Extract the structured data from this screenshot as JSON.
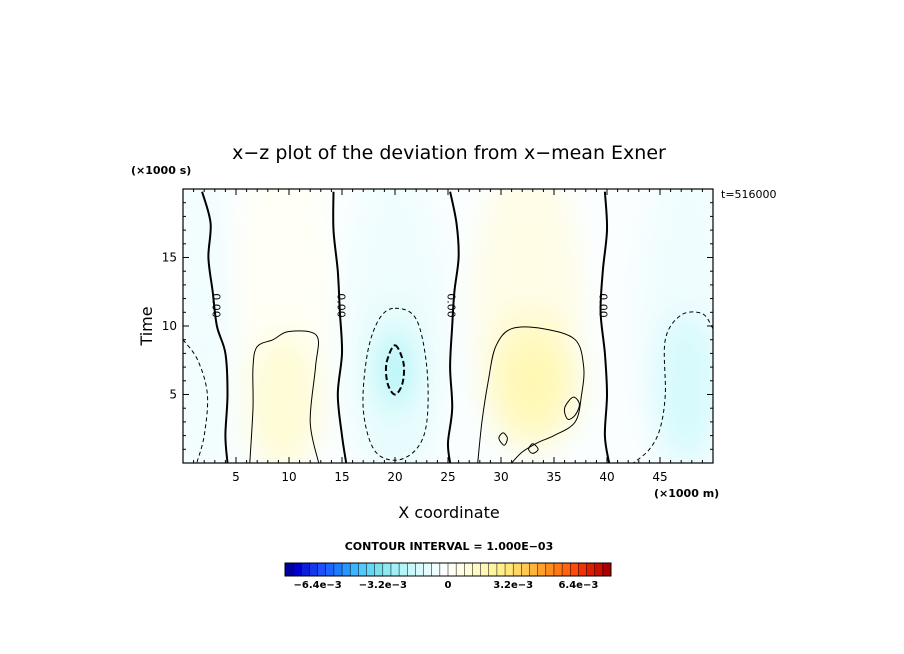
{
  "chart_data": {
    "type": "heatmap",
    "title": "x−z plot of the deviation from x−mean Exner",
    "xlabel": "X coordinate",
    "ylabel": "Time",
    "x_unit_label": "(×1000 m)",
    "y_unit_label": "(×1000 s)",
    "time_label": "t=516000",
    "contour_interval_label": "CONTOUR INTERVAL = 1.000E−03",
    "contour_interval": 0.001,
    "xlim": [
      0,
      50
    ],
    "ylim": [
      0,
      20
    ],
    "x_ticks": [
      5,
      10,
      15,
      20,
      25,
      30,
      35,
      40,
      45
    ],
    "y_ticks": [
      5,
      10,
      15
    ],
    "zero_contour_label": "0.00",
    "zero_contours": [
      {
        "label_x": 3.1,
        "label_y": 11.5,
        "points": [
          [
            1.8,
            19.8
          ],
          [
            2.6,
            17.5
          ],
          [
            2.4,
            15.0
          ],
          [
            2.8,
            12.5
          ],
          [
            3.2,
            10.0
          ],
          [
            4.0,
            8.0
          ],
          [
            4.2,
            5.0
          ],
          [
            4.0,
            2.0
          ],
          [
            4.2,
            0.0
          ]
        ]
      },
      {
        "label_x": 14.9,
        "label_y": 11.5,
        "points": [
          [
            14.2,
            19.8
          ],
          [
            14.2,
            17.0
          ],
          [
            14.6,
            14.0
          ],
          [
            14.8,
            11.0
          ],
          [
            15.0,
            8.0
          ],
          [
            14.6,
            5.0
          ],
          [
            15.0,
            2.0
          ],
          [
            15.4,
            0.0
          ]
        ]
      },
      {
        "label_x": 25.3,
        "label_y": 11.5,
        "points": [
          [
            25.2,
            19.8
          ],
          [
            25.8,
            17.5
          ],
          [
            26.0,
            15.0
          ],
          [
            25.6,
            12.5
          ],
          [
            25.4,
            10.0
          ],
          [
            25.2,
            7.0
          ],
          [
            25.4,
            4.0
          ],
          [
            25.0,
            1.5
          ],
          [
            25.2,
            0.0
          ]
        ]
      },
      {
        "label_x": 39.6,
        "label_y": 11.5,
        "points": [
          [
            39.8,
            19.8
          ],
          [
            40.0,
            17.0
          ],
          [
            39.6,
            14.0
          ],
          [
            39.4,
            11.0
          ],
          [
            39.8,
            8.0
          ],
          [
            40.0,
            5.0
          ],
          [
            39.8,
            2.0
          ],
          [
            40.2,
            0.0
          ]
        ]
      }
    ],
    "negative_contours": [
      {
        "value": -0.001,
        "closed": false,
        "points": [
          [
            0.0,
            9.0
          ],
          [
            1.4,
            7.5
          ],
          [
            2.3,
            5.0
          ],
          [
            2.0,
            2.0
          ],
          [
            1.3,
            0.0
          ]
        ]
      },
      {
        "value": -0.001,
        "closed": true,
        "points": [
          [
            20.0,
            11.3
          ],
          [
            22.0,
            10.5
          ],
          [
            23.0,
            7.0
          ],
          [
            23.0,
            3.0
          ],
          [
            22.0,
            1.0
          ],
          [
            20.0,
            0.2
          ],
          [
            18.0,
            1.0
          ],
          [
            17.0,
            4.0
          ],
          [
            17.4,
            8.0
          ],
          [
            18.5,
            10.5
          ]
        ]
      },
      {
        "value": -0.002,
        "closed": true,
        "points": [
          [
            20.0,
            8.6
          ],
          [
            20.8,
            7.3
          ],
          [
            20.7,
            5.8
          ],
          [
            20.0,
            5.0
          ],
          [
            19.3,
            5.8
          ],
          [
            19.2,
            7.3
          ]
        ]
      },
      {
        "value": -0.001,
        "closed": false,
        "points": [
          [
            50.0,
            9.8
          ],
          [
            49.0,
            10.9
          ],
          [
            47.0,
            10.8
          ],
          [
            45.5,
            9.0
          ],
          [
            45.5,
            5.0
          ],
          [
            45.0,
            2.5
          ],
          [
            44.0,
            1.0
          ],
          [
            42.5,
            0.0
          ]
        ]
      }
    ],
    "positive_contours": [
      {
        "value": 0.001,
        "closed": false,
        "points": [
          [
            6.3,
            0.0
          ],
          [
            6.6,
            4.0
          ],
          [
            6.6,
            7.0
          ],
          [
            7.0,
            8.5
          ],
          [
            8.5,
            9.0
          ],
          [
            10.0,
            9.6
          ],
          [
            12.6,
            9.3
          ],
          [
            12.5,
            7.0
          ],
          [
            12.0,
            3.0
          ],
          [
            12.8,
            0.0
          ]
        ]
      },
      {
        "value": 0.001,
        "closed": false,
        "points": [
          [
            27.8,
            0.0
          ],
          [
            28.2,
            3.0
          ],
          [
            28.8,
            6.0
          ],
          [
            29.5,
            8.5
          ],
          [
            31.0,
            9.8
          ],
          [
            34.0,
            9.8
          ],
          [
            37.0,
            9.0
          ],
          [
            37.8,
            7.0
          ],
          [
            37.6,
            5.0
          ],
          [
            37.0,
            3.0
          ],
          [
            35.0,
            2.0
          ],
          [
            33.5,
            1.5
          ],
          [
            32.0,
            0.8
          ],
          [
            31.0,
            0.0
          ]
        ]
      },
      {
        "value": 0.001,
        "closed": true,
        "points": [
          [
            36.8,
            4.8
          ],
          [
            37.4,
            4.3
          ],
          [
            37.0,
            3.5
          ],
          [
            36.3,
            3.2
          ],
          [
            36.0,
            4.0
          ]
        ]
      },
      {
        "value": 0.001,
        "closed": true,
        "points": [
          [
            30.2,
            2.2
          ],
          [
            30.6,
            1.8
          ],
          [
            30.3,
            1.3
          ],
          [
            29.8,
            1.8
          ]
        ]
      },
      {
        "value": 0.001,
        "closed": true,
        "points": [
          [
            33.0,
            1.4
          ],
          [
            33.5,
            1.0
          ],
          [
            33.0,
            0.7
          ],
          [
            32.6,
            1.0
          ]
        ]
      }
    ],
    "fill_blobs": [
      {
        "x": 2.0,
        "y": 10.0,
        "rx": 2.3,
        "ry": 12.0,
        "value": -0.0005
      },
      {
        "x": 47.5,
        "y": 10.0,
        "rx": 4.5,
        "ry": 12.0,
        "value": -0.0008
      },
      {
        "x": 47.5,
        "y": 5.5,
        "rx": 3.0,
        "ry": 5.5,
        "value": -0.0014
      },
      {
        "x": 9.5,
        "y": 12.0,
        "rx": 4.5,
        "ry": 11.0,
        "value": 0.0004
      },
      {
        "x": 9.5,
        "y": 4.5,
        "rx": 3.5,
        "ry": 5.0,
        "value": 0.001
      },
      {
        "x": 20.0,
        "y": 9.5,
        "rx": 5.0,
        "ry": 12.0,
        "value": -0.0005
      },
      {
        "x": 20.0,
        "y": 6.0,
        "rx": 3.5,
        "ry": 6.5,
        "value": -0.0012
      },
      {
        "x": 20.0,
        "y": 6.8,
        "rx": 1.6,
        "ry": 2.8,
        "value": -0.0022
      },
      {
        "x": 32.5,
        "y": 12.0,
        "rx": 5.0,
        "ry": 10.0,
        "value": 0.0005
      },
      {
        "x": 33.0,
        "y": 6.0,
        "rx": 4.5,
        "ry": 5.0,
        "value": 0.0012
      },
      {
        "x": 33.0,
        "y": 6.0,
        "rx": 2.5,
        "ry": 3.0,
        "value": 0.0016
      }
    ],
    "colorbar": {
      "vmin": -0.008,
      "vmax": 0.008,
      "step": 0.0004,
      "tick_values": [
        -0.0064,
        -0.0032,
        0,
        0.0032,
        0.0064
      ],
      "tick_labels": [
        "−6.4e−3",
        "−3.2e−3",
        "0",
        "3.2e−3",
        "6.4e−3"
      ],
      "colors": [
        "#0000a0",
        "#0000c8",
        "#0a1edc",
        "#1437ec",
        "#1e50fa",
        "#1e64ff",
        "#1e7cff",
        "#2896ff",
        "#3cb4ff",
        "#50c8ff",
        "#64d7f5",
        "#78e1f0",
        "#8ceaf0",
        "#a0f0f5",
        "#b4f5f8",
        "#c8f8fa",
        "#d7fafc",
        "#e6fcfd",
        "#f0fdfe",
        "#fafeff",
        "#fffff5",
        "#fffde6",
        "#fffcd7",
        "#fffac8",
        "#fff8b4",
        "#fff5a0",
        "#fff08c",
        "#ffe678",
        "#ffd764",
        "#ffc850",
        "#ffb43c",
        "#ffa028",
        "#ff8c1e",
        "#ff7814",
        "#ff640f",
        "#ff4b0a",
        "#f03205",
        "#dc1e00",
        "#c80f00",
        "#aa0000"
      ]
    }
  }
}
